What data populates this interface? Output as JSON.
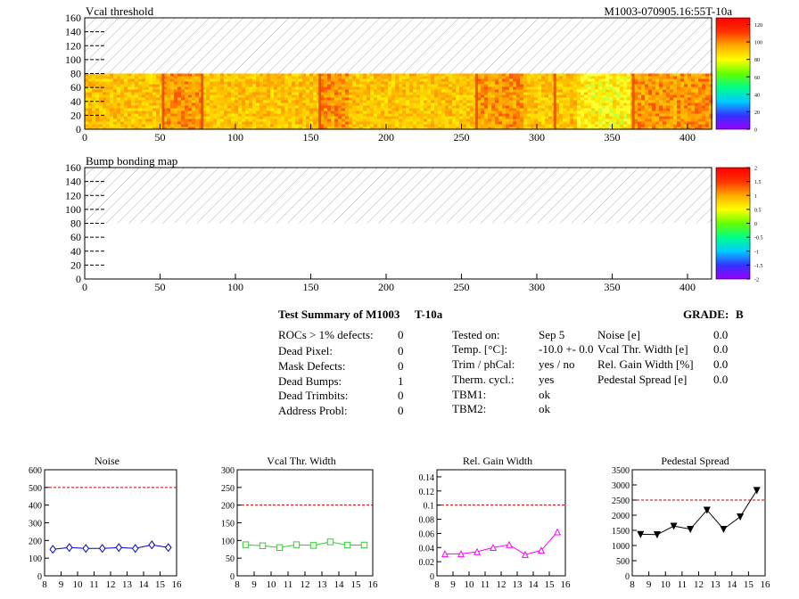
{
  "header": {
    "module_id": "M1003-070905.16:55T-10a"
  },
  "chart_data": [
    {
      "id": "vcal",
      "type": "heatmap",
      "title": "Vcal threshold",
      "xlim": [
        0,
        416
      ],
      "ylim": [
        0,
        160
      ],
      "x_ticks": [
        0,
        50,
        100,
        150,
        200,
        250,
        300,
        350,
        400
      ],
      "y_ticks": [
        0,
        20,
        40,
        60,
        80,
        100,
        120,
        140,
        160
      ],
      "data_region": {
        "x": [
          0,
          416
        ],
        "y": [
          0,
          80
        ]
      },
      "hatched_region": {
        "x": [
          0,
          416
        ],
        "y": [
          80,
          160
        ]
      },
      "z_range": [
        0,
        128
      ],
      "z_ticks": [
        "0",
        "20",
        "40",
        "60",
        "80",
        "100",
        "120"
      ],
      "roc_boundaries": [
        52,
        78,
        156,
        260,
        312,
        364
      ],
      "dominant_level": "yellow-orange",
      "palette": [
        "#9900ff",
        "#3333ff",
        "#00ccff",
        "#00ff66",
        "#66ff00",
        "#ffff00",
        "#ffaa00",
        "#ff3300",
        "#ff0000"
      ]
    },
    {
      "id": "bump",
      "type": "heatmap",
      "title": "Bump bonding map",
      "xlim": [
        0,
        416
      ],
      "ylim": [
        0,
        160
      ],
      "x_ticks": [
        0,
        50,
        100,
        150,
        200,
        250,
        300,
        350,
        400
      ],
      "y_ticks": [
        0,
        20,
        40,
        60,
        80,
        100,
        120,
        140,
        160
      ],
      "hatched_region": {
        "x": [
          0,
          416
        ],
        "y": [
          80,
          160
        ]
      },
      "z_range": [
        -2,
        2
      ],
      "z_ticks": [
        "-2",
        "-1.5",
        "-1",
        "-0.5",
        "0",
        "0.5",
        "1",
        "1.5",
        "2"
      ]
    },
    {
      "id": "noise",
      "type": "line",
      "title": "Noise",
      "x": [
        8.5,
        9.5,
        10.5,
        11.5,
        12.5,
        13.5,
        14.5,
        15.5
      ],
      "values": [
        150,
        160,
        155,
        155,
        160,
        155,
        175,
        160
      ],
      "xlim": [
        8,
        16
      ],
      "ylim": [
        0,
        600
      ],
      "x_ticks": [
        8,
        9,
        10,
        11,
        12,
        13,
        14,
        15,
        16
      ],
      "y_ticks": [
        "0",
        "100",
        "200",
        "300",
        "400",
        "500",
        "600"
      ],
      "threshold": 500,
      "color": "#0000cc",
      "marker": "diamond"
    },
    {
      "id": "vcal_width",
      "type": "line",
      "title": "Vcal Thr. Width",
      "x": [
        8.5,
        9.5,
        10.5,
        11.5,
        12.5,
        13.5,
        14.5,
        15.5
      ],
      "values": [
        88,
        85,
        80,
        88,
        86,
        96,
        87,
        87
      ],
      "xlim": [
        8,
        16
      ],
      "ylim": [
        0,
        300
      ],
      "x_ticks": [
        8,
        9,
        10,
        11,
        12,
        13,
        14,
        15,
        16
      ],
      "y_ticks": [
        "0",
        "50",
        "100",
        "150",
        "200",
        "250",
        "300"
      ],
      "threshold": 200,
      "color": "#33cc33",
      "marker": "square"
    },
    {
      "id": "gain_width",
      "type": "line",
      "title": "Rel. Gain Width",
      "x": [
        8.5,
        9.5,
        10.5,
        11.5,
        12.5,
        13.5,
        14.5,
        15.5
      ],
      "values": [
        0.031,
        0.031,
        0.034,
        0.04,
        0.044,
        0.03,
        0.036,
        0.062
      ],
      "xlim": [
        8,
        16
      ],
      "ylim": [
        0,
        0.15
      ],
      "x_ticks": [
        8,
        9,
        10,
        11,
        12,
        13,
        14,
        15,
        16
      ],
      "y_ticks": [
        "0",
        "0.02",
        "0.04",
        "0.06",
        "0.08",
        "0.1",
        "0.12",
        "0.14"
      ],
      "threshold": 0.1,
      "color": "#ff00ff",
      "marker": "triangle-up"
    },
    {
      "id": "pedestal",
      "type": "line",
      "title": "Pedestal Spread",
      "x": [
        8.5,
        9.5,
        10.5,
        11.5,
        12.5,
        13.5,
        14.5,
        15.5
      ],
      "values": [
        1370,
        1360,
        1640,
        1540,
        2170,
        1540,
        1950,
        2820
      ],
      "xlim": [
        8,
        16
      ],
      "ylim": [
        0,
        3500
      ],
      "x_ticks": [
        8,
        9,
        10,
        11,
        12,
        13,
        14,
        15,
        16
      ],
      "y_ticks": [
        "0",
        "500",
        "1000",
        "1500",
        "2000",
        "2500",
        "3000",
        "3500"
      ],
      "threshold": 2500,
      "color": "#000000",
      "marker": "triangle-down"
    }
  ],
  "summary": {
    "title": "Test Summary of M1003",
    "temp_tag": "T-10a",
    "grade_label": "GRADE:",
    "grade_value": "B",
    "defects": [
      {
        "label": "ROCs > 1% defects:",
        "value": "0"
      },
      {
        "label": "Dead Pixel:",
        "value": "0"
      },
      {
        "label": "Mask Defects:",
        "value": "0"
      },
      {
        "label": "Dead Bumps:",
        "value": "1"
      },
      {
        "label": "Dead Trimbits:",
        "value": "0"
      },
      {
        "label": "Address Probl:",
        "value": "0"
      }
    ],
    "conditions": [
      {
        "label": "Tested on:",
        "value": "Sep 5"
      },
      {
        "label": "Temp. [°C]:",
        "value": "-10.0 +- 0.0"
      },
      {
        "label": "Trim / phCal:",
        "value": "yes / no"
      },
      {
        "label": "Therm. cycl.:",
        "value": "yes"
      },
      {
        "label": "TBM1:",
        "value": "ok"
      },
      {
        "label": "TBM2:",
        "value": "ok"
      }
    ],
    "widths": [
      {
        "label": "Noise [e]",
        "value": "0.0"
      },
      {
        "label": "Vcal Thr. Width [e]",
        "value": "0.0"
      },
      {
        "label": "Rel. Gain Width [%]",
        "value": "0.0"
      },
      {
        "label": "Pedestal Spread [e]",
        "value": "0.0"
      }
    ]
  }
}
